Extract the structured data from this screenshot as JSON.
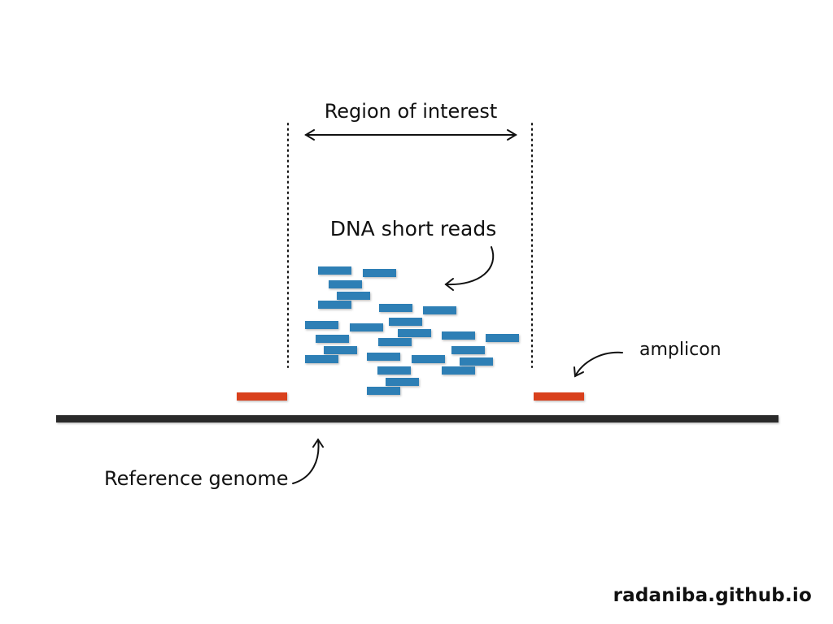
{
  "labels": {
    "region_of_interest": "Region of interest",
    "dna_short_reads": "DNA short reads",
    "amplicon": "amplicon",
    "reference_genome": "Reference genome"
  },
  "credit": "radaniba.github.io",
  "colors": {
    "read": "#2f7fb5",
    "amplicon": "#d9411e",
    "genome": "#2b2b2b",
    "ink": "#111111"
  },
  "counts": {
    "short_reads": 25,
    "amplicons": 2
  }
}
